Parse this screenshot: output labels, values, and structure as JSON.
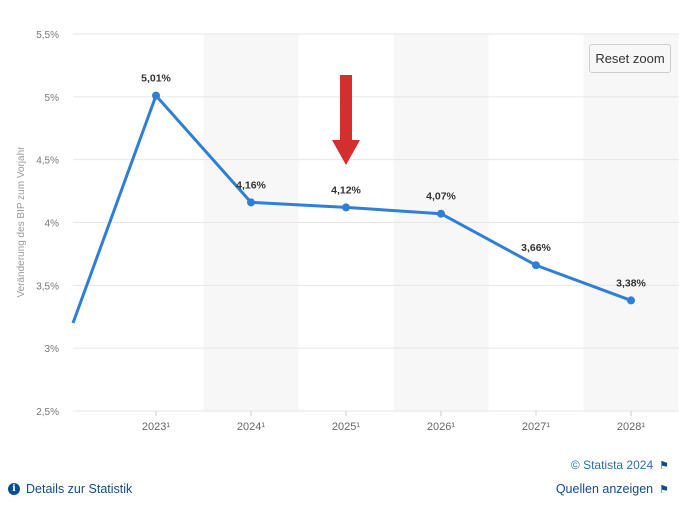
{
  "chart_data": {
    "type": "line",
    "categories": [
      "2023¹",
      "2024¹",
      "2025¹",
      "2026¹",
      "2027¹",
      "2028¹"
    ],
    "series": [
      {
        "values": [
          5.01,
          4.16,
          4.12,
          4.07,
          3.66,
          3.38
        ]
      }
    ],
    "data_labels": [
      "5,01%",
      "4,16%",
      "4,12%",
      "4,07%",
      "3,66%",
      "3,38%"
    ],
    "series_enters_from_left_at": 3.2,
    "ylabel": "Veränderung des BIP zum Vorjahr",
    "yticks": [
      {
        "value": 2.5,
        "label": "2,5%"
      },
      {
        "value": 3,
        "label": "3%"
      },
      {
        "value": 3.5,
        "label": "3,5%"
      },
      {
        "value": 4,
        "label": "4%"
      },
      {
        "value": 4.5,
        "label": "4,5%"
      },
      {
        "value": 5,
        "label": "5%"
      },
      {
        "value": 5.5,
        "label": "5,5%"
      }
    ],
    "ylim": [
      2.5,
      5.5
    ],
    "grid": true,
    "alternating_bands": true,
    "highlight_arrow_category": "2025¹",
    "colors": {
      "line": "#2f7ed8",
      "arrow": "#d32f2f",
      "band": "#f7f7f7",
      "grid": "#e6e6e6"
    }
  },
  "toolbar": {
    "reset_zoom_label": "Reset zoom"
  },
  "footer": {
    "credit": "© Statista 2024",
    "details_label": "Details zur Statistik",
    "sources_label": "Quellen anzeigen",
    "info_icon": "i",
    "flag_icon": "⚑"
  }
}
